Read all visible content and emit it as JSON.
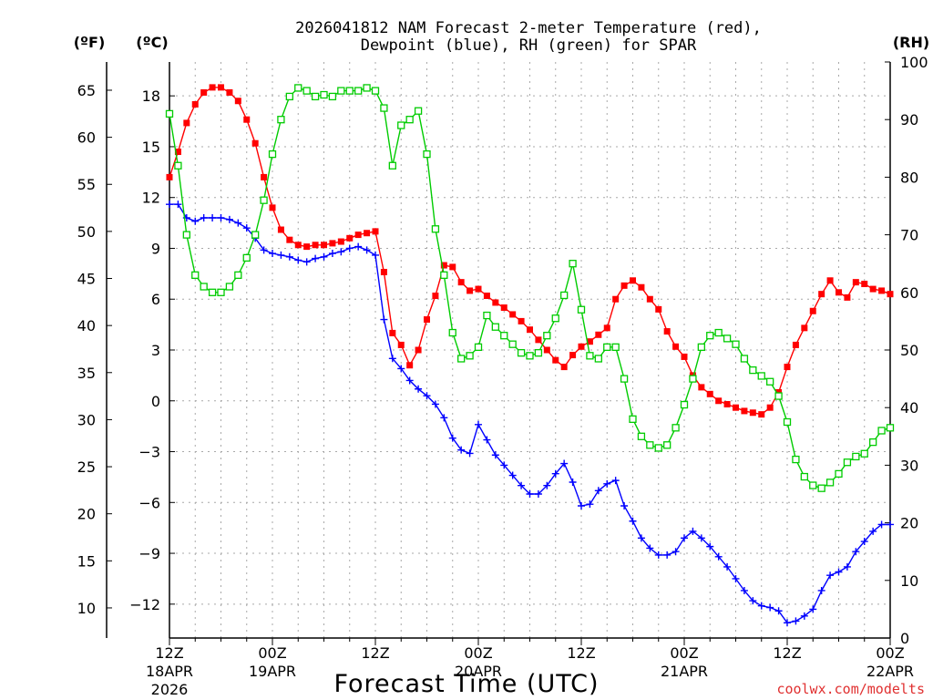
{
  "chart_data": {
    "type": "line",
    "title_line1": "2026041812 NAM Forecast 2-meter Temperature (red),",
    "title_line2": "Dewpoint (blue), RH (green) for SPAR",
    "units": {
      "fahrenheit": "(ºF)",
      "celsius": "(ºC)",
      "rh": "(RH)"
    },
    "xlabel": "Forecast Time (UTC)",
    "credit": "coolwx.com/modelts",
    "x_range_hours": [
      0,
      84
    ],
    "x_ticks": [
      {
        "h": 0,
        "line1": "12Z",
        "line2": "18APR",
        "line3": "2026"
      },
      {
        "h": 12,
        "line1": "00Z",
        "line2": "19APR",
        "line3": ""
      },
      {
        "h": 24,
        "line1": "12Z",
        "line2": "",
        "line3": ""
      },
      {
        "h": 36,
        "line1": "00Z",
        "line2": "20APR",
        "line3": ""
      },
      {
        "h": 48,
        "line1": "12Z",
        "line2": "",
        "line3": ""
      },
      {
        "h": 60,
        "line1": "00Z",
        "line2": "21APR",
        "line3": ""
      },
      {
        "h": 72,
        "line1": "12Z",
        "line2": "",
        "line3": ""
      },
      {
        "h": 84,
        "line1": "00Z",
        "line2": "22APR",
        "line3": ""
      }
    ],
    "celsius_axis": {
      "ylim": [
        -14,
        20
      ],
      "ticks": [
        "−12",
        "−9",
        "−6",
        "−3",
        "0",
        "3",
        "6",
        "9",
        "12",
        "15",
        "18"
      ],
      "tick_values": [
        -12,
        -9,
        -6,
        -3,
        0,
        3,
        6,
        9,
        12,
        15,
        18
      ]
    },
    "fahrenheit_axis": {
      "ticks": [
        "10",
        "15",
        "20",
        "25",
        "30",
        "35",
        "40",
        "45",
        "50",
        "55",
        "60",
        "65"
      ],
      "tick_values": [
        10,
        15,
        20,
        25,
        30,
        35,
        40,
        45,
        50,
        55,
        60,
        65
      ]
    },
    "rh_axis": {
      "ylim": [
        0,
        100
      ],
      "ticks": [
        "0",
        "10",
        "20",
        "30",
        "40",
        "50",
        "60",
        "70",
        "80",
        "90",
        "100"
      ],
      "tick_values": [
        0,
        10,
        20,
        30,
        40,
        50,
        60,
        70,
        80,
        90,
        100
      ]
    },
    "grid": true,
    "colors": {
      "temperature": "#ff0000",
      "dewpoint": "#0000ff",
      "rh": "#00cc00"
    },
    "series": [
      {
        "key": "temperature",
        "axis": "celsius",
        "marker": "square-filled",
        "x": [
          0,
          1,
          2,
          3,
          4,
          5,
          6,
          7,
          8,
          9,
          10,
          11,
          12,
          13,
          14,
          15,
          16,
          17,
          18,
          19,
          20,
          21,
          22,
          23,
          24,
          25,
          26,
          27,
          28,
          29,
          30,
          31,
          32,
          33,
          34,
          35,
          36,
          37,
          38,
          39,
          40,
          41,
          42,
          43,
          44,
          45,
          46,
          47,
          48,
          49,
          50,
          51,
          52,
          53,
          54,
          55,
          56,
          57,
          58,
          59,
          60,
          61,
          62,
          63,
          64,
          65,
          66,
          67,
          68,
          69,
          70,
          71,
          72,
          73,
          74,
          75,
          76,
          77,
          78,
          79,
          80,
          81,
          82,
          83,
          84
        ],
        "values": [
          13.2,
          14.7,
          16.4,
          17.5,
          18.2,
          18.5,
          18.5,
          18.2,
          17.7,
          16.6,
          15.2,
          13.2,
          11.4,
          10.1,
          9.5,
          9.2,
          9.1,
          9.2,
          9.2,
          9.3,
          9.4,
          9.6,
          9.8,
          9.9,
          10.0,
          7.6,
          4.0,
          3.3,
          2.1,
          3.0,
          4.8,
          6.2,
          8.0,
          7.9,
          7.0,
          6.5,
          6.6,
          6.2,
          5.8,
          5.5,
          5.1,
          4.7,
          4.2,
          3.6,
          3.0,
          2.4,
          2.0,
          2.7,
          3.2,
          3.5,
          3.9,
          4.3,
          6.0,
          6.8,
          7.1,
          6.7,
          6.0,
          5.4,
          4.1,
          3.2,
          2.6,
          1.5,
          0.8,
          0.4,
          0.0,
          -0.2,
          -0.4,
          -0.6,
          -0.7,
          -0.8,
          -0.4,
          0.5,
          2.0,
          3.3,
          4.3,
          5.3,
          6.3,
          7.1,
          6.4,
          6.1,
          7.0,
          6.9,
          6.6,
          6.5,
          6.3
        ]
      },
      {
        "key": "dewpoint",
        "axis": "celsius",
        "marker": "plus",
        "x": [
          0,
          1,
          2,
          3,
          4,
          5,
          6,
          7,
          8,
          9,
          10,
          11,
          12,
          13,
          14,
          15,
          16,
          17,
          18,
          19,
          20,
          21,
          22,
          23,
          24,
          25,
          26,
          27,
          28,
          29,
          30,
          31,
          32,
          33,
          34,
          35,
          36,
          37,
          38,
          39,
          40,
          41,
          42,
          43,
          44,
          45,
          46,
          47,
          48,
          49,
          50,
          51,
          52,
          53,
          54,
          55,
          56,
          57,
          58,
          59,
          60,
          61,
          62,
          63,
          64,
          65,
          66,
          67,
          68,
          69,
          70,
          71,
          72,
          73,
          74,
          75,
          76,
          77,
          78,
          79,
          80,
          81,
          82,
          83,
          84
        ],
        "values": [
          11.6,
          11.6,
          10.8,
          10.6,
          10.8,
          10.8,
          10.8,
          10.7,
          10.5,
          10.2,
          9.6,
          8.9,
          8.7,
          8.6,
          8.5,
          8.3,
          8.2,
          8.4,
          8.5,
          8.7,
          8.8,
          9.0,
          9.1,
          8.9,
          8.6,
          4.8,
          2.5,
          1.9,
          1.2,
          0.7,
          0.3,
          -0.2,
          -1.0,
          -2.2,
          -2.9,
          -3.1,
          -1.4,
          -2.3,
          -3.2,
          -3.8,
          -4.4,
          -5.0,
          -5.5,
          -5.5,
          -5.0,
          -4.3,
          -3.7,
          -4.8,
          -6.2,
          -6.1,
          -5.3,
          -4.9,
          -4.7,
          -6.2,
          -7.1,
          -8.1,
          -8.7,
          -9.1,
          -9.1,
          -8.9,
          -8.1,
          -7.7,
          -8.1,
          -8.6,
          -9.2,
          -9.8,
          -10.5,
          -11.2,
          -11.8,
          -12.1,
          -12.2,
          -12.4,
          -13.1,
          -13.0,
          -12.7,
          -12.3,
          -11.2,
          -10.3,
          -10.1,
          -9.8,
          -8.9,
          -8.3,
          -7.7,
          -7.3,
          -7.3
        ]
      },
      {
        "key": "rh",
        "axis": "rh",
        "marker": "square-open",
        "x": [
          0,
          1,
          2,
          3,
          4,
          5,
          6,
          7,
          8,
          9,
          10,
          11,
          12,
          13,
          14,
          15,
          16,
          17,
          18,
          19,
          20,
          21,
          22,
          23,
          24,
          25,
          26,
          27,
          28,
          29,
          30,
          31,
          32,
          33,
          34,
          35,
          36,
          37,
          38,
          39,
          40,
          41,
          42,
          43,
          44,
          45,
          46,
          47,
          48,
          49,
          50,
          51,
          52,
          53,
          54,
          55,
          56,
          57,
          58,
          59,
          60,
          61,
          62,
          63,
          64,
          65,
          66,
          67,
          68,
          69,
          70,
          71,
          72,
          73,
          74,
          75,
          76,
          77,
          78,
          79,
          80,
          81,
          82,
          83,
          84
        ],
        "values": [
          91,
          82,
          70,
          63,
          61,
          60,
          60,
          61,
          63,
          66,
          70,
          76,
          84,
          90,
          94,
          95.5,
          95,
          94,
          94.3,
          94,
          95,
          95,
          95,
          95.5,
          95,
          92,
          82,
          89,
          90,
          91.5,
          84,
          71,
          63,
          53,
          48.5,
          49,
          50.5,
          56,
          54,
          52.5,
          51,
          49.5,
          49,
          49.5,
          52.5,
          55.5,
          59.5,
          65,
          57,
          49,
          48.5,
          50.5,
          50.5,
          45,
          38,
          35,
          33.5,
          33,
          33.5,
          36.5,
          40.5,
          45,
          50.5,
          52.5,
          53,
          52,
          51,
          48.5,
          46.5,
          45.5,
          44.5,
          42,
          37.5,
          31,
          28,
          26.5,
          26,
          27,
          28.5,
          30.5,
          31.5,
          32,
          34,
          36,
          36.5
        ]
      }
    ]
  }
}
